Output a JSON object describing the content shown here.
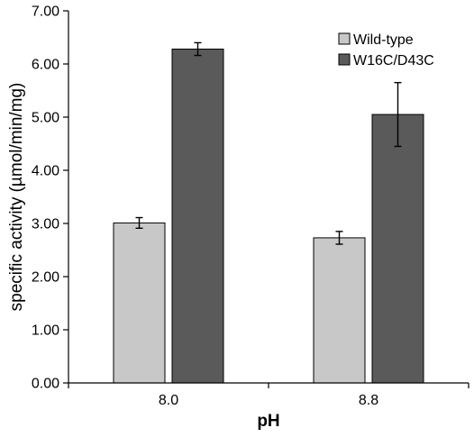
{
  "chart_data": {
    "type": "bar",
    "xlabel": "pH",
    "ylabel": "specific activity (µmol/min/mg)",
    "ylim": [
      0,
      7
    ],
    "yticks": [
      "0.00",
      "1.00",
      "2.00",
      "3.00",
      "4.00",
      "5.00",
      "6.00",
      "7.00"
    ],
    "categories": [
      "8.0",
      "8.8"
    ],
    "grid": false,
    "legend_position": "top-right",
    "series": [
      {
        "name": "Wild-type",
        "color": "#c8c8c8",
        "values": [
          3.01,
          2.73
        ],
        "errors": [
          0.1,
          0.12
        ]
      },
      {
        "name": "W16C/D43C",
        "color": "#5a5a5a",
        "values": [
          6.28,
          5.05
        ],
        "errors": [
          0.12,
          0.6
        ]
      }
    ]
  }
}
